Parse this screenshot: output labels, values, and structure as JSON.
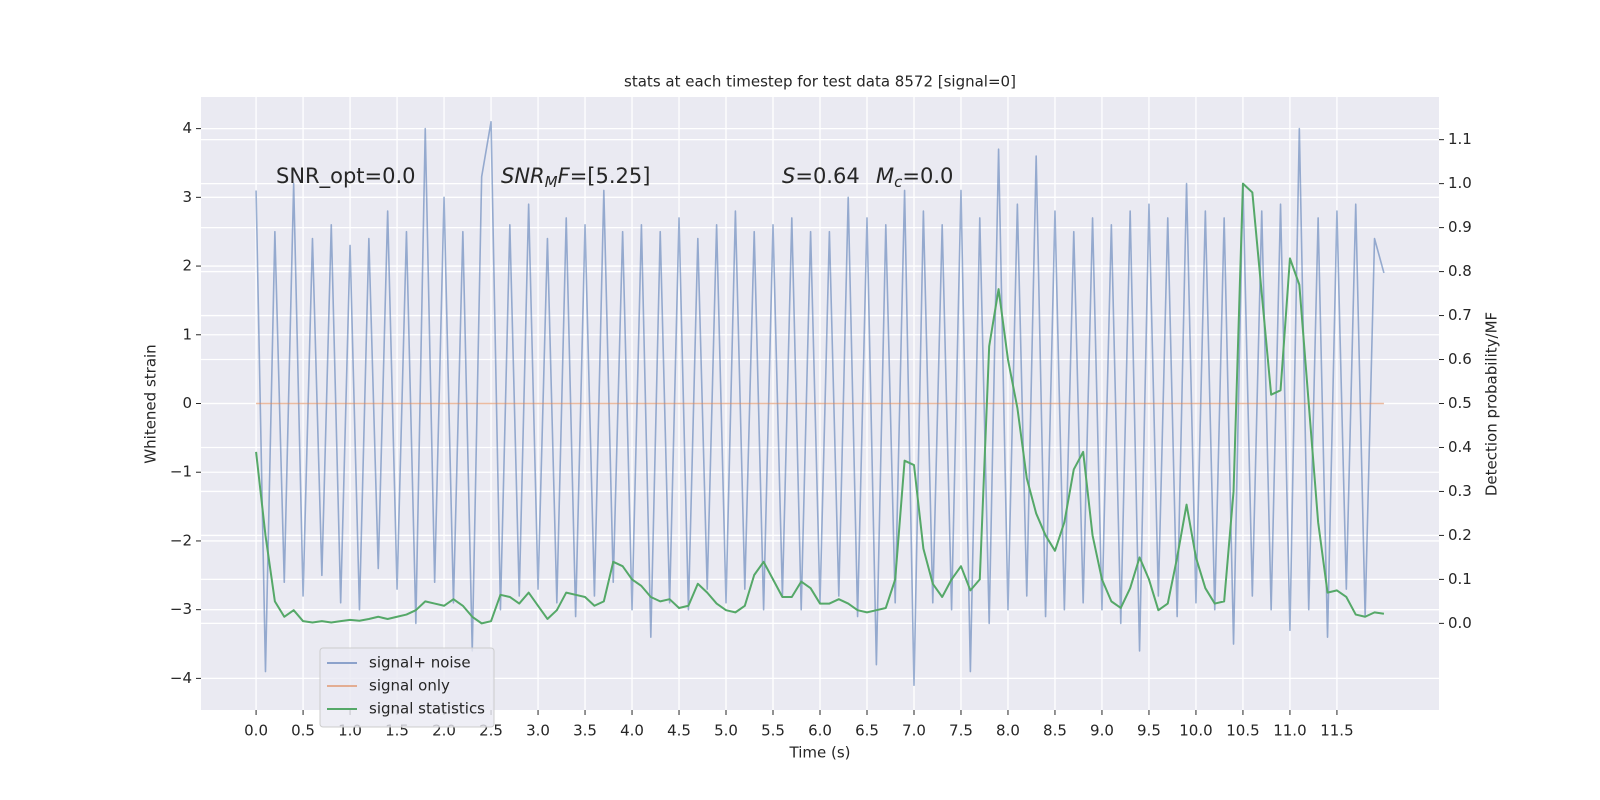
{
  "chart_data": {
    "type": "line",
    "title": "stats at each timestep for test data 8572 [signal=0]",
    "x_label": "Time (s)",
    "y_label": "Whitened strain",
    "y2_label": "Detection probability/MF",
    "grid": true,
    "legend": "lower left",
    "annotations": [
      [
        {
          "text": "SNR_opt=0.0",
          "style": "normal"
        }
      ],
      [
        {
          "text": "SNR",
          "style": "italic"
        },
        {
          "text": "M",
          "style": "sub"
        },
        {
          "text": "F",
          "style": "italic"
        },
        {
          "text": "=[5.25]",
          "style": "normal"
        }
      ],
      [
        {
          "text": "S",
          "style": "italic"
        },
        {
          "text": "=0.64",
          "style": "normal"
        }
      ],
      [
        {
          "text": "M",
          "style": "italic"
        },
        {
          "text": "c",
          "style": "sub"
        },
        {
          "text": "=0.0",
          "style": "normal"
        }
      ]
    ],
    "xlim": [
      -0.586,
      12.586
    ],
    "xticks": [
      {
        "value": 0,
        "label": "0.0"
      },
      0.5,
      {
        "value": 1,
        "label": "1.0"
      },
      1.5,
      {
        "value": 2,
        "label": "2.0"
      },
      2.5,
      {
        "value": 3,
        "label": "3.0"
      },
      3.5,
      {
        "value": 4,
        "label": "4.0"
      },
      4.5,
      {
        "value": 5,
        "label": "5.0"
      },
      5.5,
      {
        "value": 6,
        "label": "6.0"
      },
      6.5,
      {
        "value": 7,
        "label": "7.0"
      },
      7.5,
      {
        "value": 8,
        "label": "8.0"
      },
      8.5,
      {
        "value": 9,
        "label": "9.0"
      },
      9.5,
      {
        "value": 10,
        "label": "10.0"
      },
      10.5,
      {
        "value": 11,
        "label": "11.0"
      },
      11.5
    ],
    "ylim": [
      -4.46,
      4.46
    ],
    "yticks": [
      {
        "value": -4,
        "label": "−4"
      },
      {
        "value": -3,
        "label": "−3"
      },
      {
        "value": -2,
        "label": "−2"
      },
      {
        "value": -1,
        "label": "−1"
      },
      0,
      1,
      2,
      3,
      4
    ],
    "y2lim": [
      -0.197,
      1.197
    ],
    "y2ticks": [
      {
        "value": 0,
        "label": "0.0"
      },
      0.1,
      0.2,
      0.3,
      0.4,
      0.5,
      0.6,
      0.7,
      0.8,
      0.9,
      {
        "value": 1,
        "label": "1.0"
      },
      1.1
    ],
    "x": [
      0,
      0.1,
      0.2,
      0.3,
      0.4,
      0.5,
      0.6,
      0.7,
      0.8,
      0.9,
      1,
      1.1,
      1.2,
      1.3,
      1.4,
      1.5,
      1.6,
      1.7,
      1.8,
      1.9,
      2,
      2.1,
      2.2,
      2.3,
      2.4,
      2.5,
      2.6,
      2.7,
      2.8,
      2.9,
      3,
      3.1,
      3.2,
      3.3,
      3.4,
      3.5,
      3.6,
      3.7,
      3.8,
      3.9,
      4,
      4.1,
      4.2,
      4.3,
      4.4,
      4.5,
      4.6,
      4.7,
      4.8,
      4.9,
      5,
      5.1,
      5.2,
      5.3,
      5.4,
      5.5,
      5.6,
      5.7,
      5.8,
      5.9,
      6,
      6.1,
      6.2,
      6.3,
      6.4,
      6.5,
      6.6,
      6.7,
      6.8,
      6.9,
      7,
      7.1,
      7.2,
      7.3,
      7.4,
      7.5,
      7.6,
      7.7,
      7.8,
      7.9,
      8,
      8.1,
      8.2,
      8.3,
      8.4,
      8.5,
      8.6,
      8.7,
      8.8,
      8.9,
      9,
      9.1,
      9.2,
      9.3,
      9.4,
      9.5,
      9.6,
      9.7,
      9.8,
      9.9,
      10,
      10.1,
      10.2,
      10.3,
      10.4,
      10.5,
      10.6,
      10.7,
      10.8,
      10.9,
      11,
      11.1,
      11.2,
      11.3,
      11.4,
      11.5,
      11.6,
      11.7,
      11.8,
      11.9,
      12
    ],
    "series": [
      {
        "name": "signal+ noise",
        "color": "#4c72b0",
        "axis": "y",
        "values": [
          3.1,
          -3.9,
          2.5,
          -2.6,
          3.2,
          -2.8,
          2.4,
          -2.5,
          2.6,
          -2.9,
          2.3,
          -3.0,
          2.4,
          -2.4,
          2.8,
          -2.7,
          2.5,
          -3.2,
          4.0,
          -2.6,
          3.0,
          -2.9,
          2.5,
          -3.6,
          3.3,
          4.1,
          -3.0,
          2.6,
          -2.8,
          2.9,
          -2.7,
          2.4,
          -2.9,
          2.7,
          -3.1,
          2.6,
          -2.8,
          3.1,
          -2.6,
          2.5,
          -3.0,
          2.6,
          -3.4,
          2.5,
          -2.9,
          2.7,
          -3.0,
          2.4,
          -2.7,
          2.6,
          -2.9,
          2.8,
          -2.7,
          2.5,
          -3.0,
          2.6,
          -2.8,
          2.7,
          -3.0,
          2.5,
          -2.9,
          2.5,
          -2.8,
          3.0,
          -3.1,
          2.7,
          -3.8,
          2.6,
          -2.9,
          3.1,
          -4.1,
          2.8,
          -2.9,
          2.6,
          -3.0,
          3.1,
          -3.9,
          2.7,
          -3.2,
          3.7,
          -3.0,
          2.9,
          -2.8,
          3.6,
          -3.1,
          2.8,
          -3.0,
          2.5,
          -2.9,
          2.7,
          -3.0,
          2.6,
          -3.2,
          2.8,
          -3.6,
          2.9,
          -2.8,
          2.7,
          -3.1,
          3.2,
          -2.9,
          2.8,
          -3.0,
          2.7,
          -3.5,
          3.2,
          -2.8,
          2.8,
          -3.0,
          2.9,
          -3.3,
          4.0,
          -3.0,
          2.7,
          -3.4,
          2.8,
          -2.7,
          2.9,
          -3.1,
          2.4,
          1.9
        ]
      },
      {
        "name": "signal only",
        "color": "#dd8452",
        "axis": "y",
        "values": [
          0,
          0,
          0,
          0,
          0,
          0,
          0,
          0,
          0,
          0,
          0,
          0,
          0,
          0,
          0,
          0,
          0,
          0,
          0,
          0,
          0,
          0,
          0,
          0,
          0,
          0,
          0,
          0,
          0,
          0,
          0,
          0,
          0,
          0,
          0,
          0,
          0,
          0,
          0,
          0,
          0,
          0,
          0,
          0,
          0,
          0,
          0,
          0,
          0,
          0,
          0,
          0,
          0,
          0,
          0,
          0,
          0,
          0,
          0,
          0,
          0,
          0,
          0,
          0,
          0,
          0,
          0,
          0,
          0,
          0,
          0,
          0,
          0,
          0,
          0,
          0,
          0,
          0,
          0,
          0,
          0,
          0,
          0,
          0,
          0,
          0,
          0,
          0,
          0,
          0,
          0,
          0,
          0,
          0,
          0,
          0,
          0,
          0,
          0,
          0,
          0,
          0,
          0,
          0,
          0,
          0,
          0,
          0,
          0,
          0,
          0,
          0,
          0,
          0,
          0,
          0,
          0,
          0,
          0,
          0,
          0
        ]
      },
      {
        "name": "signal statistics",
        "color": "#55a868",
        "axis": "y2",
        "values": [
          0.39,
          0.2,
          0.05,
          0.015,
          0.03,
          0.005,
          0.002,
          0.005,
          0.002,
          0.005,
          0.008,
          0.006,
          0.01,
          0.015,
          0.01,
          0.015,
          0.02,
          0.03,
          0.05,
          0.045,
          0.04,
          0.055,
          0.04,
          0.015,
          0.0,
          0.005,
          0.065,
          0.06,
          0.045,
          0.07,
          0.04,
          0.01,
          0.03,
          0.07,
          0.065,
          0.06,
          0.04,
          0.05,
          0.14,
          0.13,
          0.1,
          0.085,
          0.06,
          0.05,
          0.055,
          0.035,
          0.04,
          0.09,
          0.07,
          0.045,
          0.03,
          0.025,
          0.04,
          0.11,
          0.14,
          0.1,
          0.06,
          0.06,
          0.095,
          0.08,
          0.045,
          0.045,
          0.055,
          0.045,
          0.03,
          0.025,
          0.03,
          0.035,
          0.1,
          0.37,
          0.36,
          0.17,
          0.09,
          0.06,
          0.1,
          0.13,
          0.075,
          0.1,
          0.63,
          0.76,
          0.6,
          0.49,
          0.33,
          0.25,
          0.2,
          0.165,
          0.23,
          0.35,
          0.39,
          0.2,
          0.1,
          0.05,
          0.035,
          0.08,
          0.15,
          0.1,
          0.03,
          0.045,
          0.15,
          0.27,
          0.15,
          0.08,
          0.045,
          0.05,
          0.3,
          1.0,
          0.98,
          0.75,
          0.52,
          0.53,
          0.83,
          0.77,
          0.5,
          0.23,
          0.07,
          0.075,
          0.06,
          0.02,
          0.015,
          0.025,
          0.022
        ]
      }
    ]
  }
}
